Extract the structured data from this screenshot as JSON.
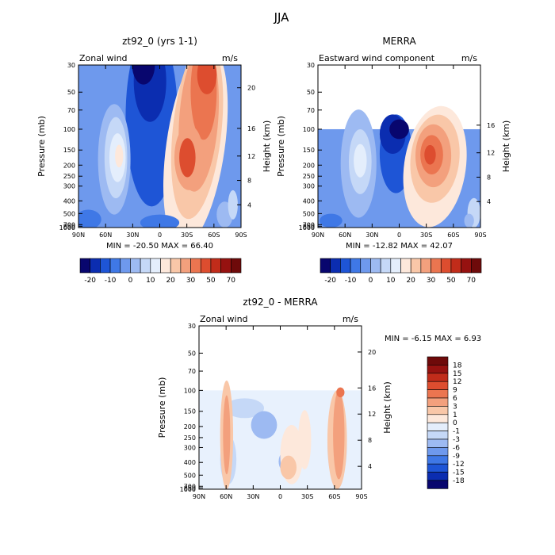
{
  "figure": {
    "title": "JJA"
  },
  "panels": [
    {
      "title": "zt92_0 (yrs 1-1)",
      "subtitle": "Zonal wind",
      "units": "m/s",
      "minmax": "MIN = -20.50   MAX =   66.40"
    },
    {
      "title": "MERRA",
      "subtitle": "Eastward wind component",
      "units": "m/s",
      "minmax": "MIN = -12.82   MAX =   42.07"
    },
    {
      "title": "zt92_0 - MERRA",
      "subtitle": "Zonal wind",
      "units": "m/s",
      "minmax": "MIN =   -6.15   MAX =    6.93"
    }
  ],
  "colors": {
    "full_scale": [
      "#08066e",
      "#0b2db0",
      "#1e55d6",
      "#3f78e6",
      "#6e99ed",
      "#9dbaf2",
      "#c5d8f7",
      "#e4eefc",
      "#fde8db",
      "#f9c7a8",
      "#f3a07d",
      "#eb7550",
      "#dd4d2f",
      "#c12c1a",
      "#961210",
      "#6e0a0a"
    ],
    "diff_scale": [
      "#08066e",
      "#0b2db0",
      "#1e55d6",
      "#3f78e6",
      "#6e99ed",
      "#9dbaf2",
      "#c5d8f7",
      "#e4eefc",
      "#fde8db",
      "#f9c7a8",
      "#f3a07d",
      "#eb7550",
      "#dd4d2f",
      "#c12c1a",
      "#961210",
      "#6e0a0a"
    ]
  },
  "chart_data": [
    {
      "type": "heatmap",
      "title": "zt92_0 (yrs 1-1)",
      "ylabel": "Pressure (mb)",
      "y2label": "Height (km)",
      "units": "m/s",
      "x_ticks": [
        "90N",
        "60N",
        "30N",
        "0",
        "30S",
        "60S",
        "90S"
      ],
      "y_ticks": [
        "30",
        "50",
        "70",
        "100",
        "150",
        "200",
        "250",
        "300",
        "400",
        "500",
        "700",
        "850",
        "1000"
      ],
      "y2_ticks": [
        "20",
        "16",
        "12",
        "8",
        "4"
      ],
      "grid": false,
      "min": -20.5,
      "max": 66.4,
      "colorbar_labels": [
        "-20",
        "-10",
        "0",
        "10",
        "20",
        "30",
        "50",
        "70"
      ],
      "colorbar_position": "below"
    },
    {
      "type": "heatmap",
      "title": "MERRA",
      "ylabel": "Pressure (mb)",
      "y2label": "Height (km)",
      "units": "m/s",
      "x_ticks": [
        "90N",
        "60N",
        "30N",
        "0",
        "30S",
        "60S",
        "90S"
      ],
      "y_ticks": [
        "30",
        "50",
        "70",
        "100",
        "150",
        "200",
        "250",
        "300",
        "400",
        "500",
        "700",
        "850",
        "1000"
      ],
      "y2_ticks": [
        "16",
        "12",
        "8",
        "4"
      ],
      "grid": false,
      "data_top_pressure": 100,
      "min": -12.82,
      "max": 42.07,
      "colorbar_labels": [
        "-20",
        "-10",
        "0",
        "10",
        "20",
        "30",
        "50",
        "70"
      ],
      "colorbar_position": "below"
    },
    {
      "type": "heatmap",
      "title": "zt92_0 - MERRA",
      "ylabel": "Pressure (mb)",
      "y2label": "Height (km)",
      "units": "m/s",
      "x_ticks": [
        "90N",
        "60N",
        "30N",
        "0",
        "30S",
        "60S",
        "90S"
      ],
      "y_ticks": [
        "30",
        "50",
        "70",
        "100",
        "150",
        "200",
        "250",
        "300",
        "400",
        "500",
        "700",
        "850",
        "1000"
      ],
      "y2_ticks": [
        "20",
        "16",
        "12",
        "8",
        "4"
      ],
      "grid": false,
      "data_top_pressure": 100,
      "min": -6.15,
      "max": 6.93,
      "colorbar_labels": [
        "18",
        "15",
        "12",
        "9",
        "6",
        "3",
        "1",
        "0",
        "-1",
        "-3",
        "-6",
        "-9",
        "-12",
        "-15",
        "-18"
      ],
      "colorbar_position": "right"
    }
  ]
}
